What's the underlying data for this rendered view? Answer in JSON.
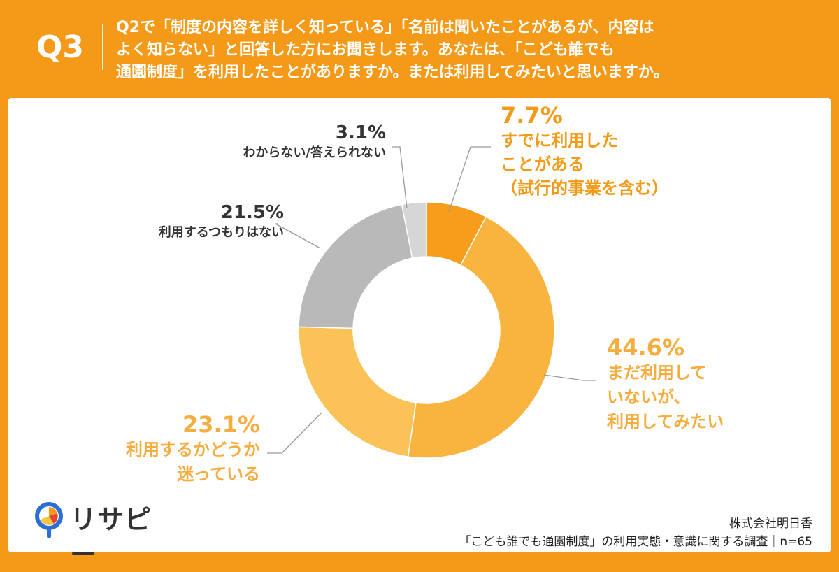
{
  "header": {
    "question_number": "Q3",
    "question_lines": [
      "Q2で「制度の内容を詳しく知っている」「名前は聞いたことがあるが、内容は",
      "よく知らない」と回答した方にお聞きします。あなたは、「こども誰でも",
      "通園制度」を利用したことがありますか。または利用してみたいと思いますか。"
    ]
  },
  "chart_data": {
    "type": "pie",
    "donut": true,
    "slices": [
      {
        "pct_label": "7.7%",
        "value": 7.7,
        "label_lines": [
          "すでに利用した",
          "ことがある",
          "（試行的事業を含む）"
        ],
        "color": "#f79d1b"
      },
      {
        "pct_label": "44.6%",
        "value": 44.6,
        "label_lines": [
          "まだ利用して",
          "いないが、",
          "利用してみたい"
        ],
        "color": "#f9b440"
      },
      {
        "pct_label": "23.1%",
        "value": 23.1,
        "label_lines": [
          "利用するかどうか",
          "迷っている"
        ],
        "color": "#fbc257"
      },
      {
        "pct_label": "21.5%",
        "value": 21.5,
        "label_lines": [
          "利用するつもりはない"
        ],
        "color": "#b9b9b9"
      },
      {
        "pct_label": "3.1%",
        "value": 3.1,
        "label_lines": [
          "わからない/答えられない"
        ],
        "color": "#d6d6d6"
      }
    ]
  },
  "logo": {
    "name": "リサピー"
  },
  "source": {
    "company": "株式会社明日香",
    "survey": "「こども誰でも通園制度」の利用実態・意識に関する調査｜n=65"
  }
}
